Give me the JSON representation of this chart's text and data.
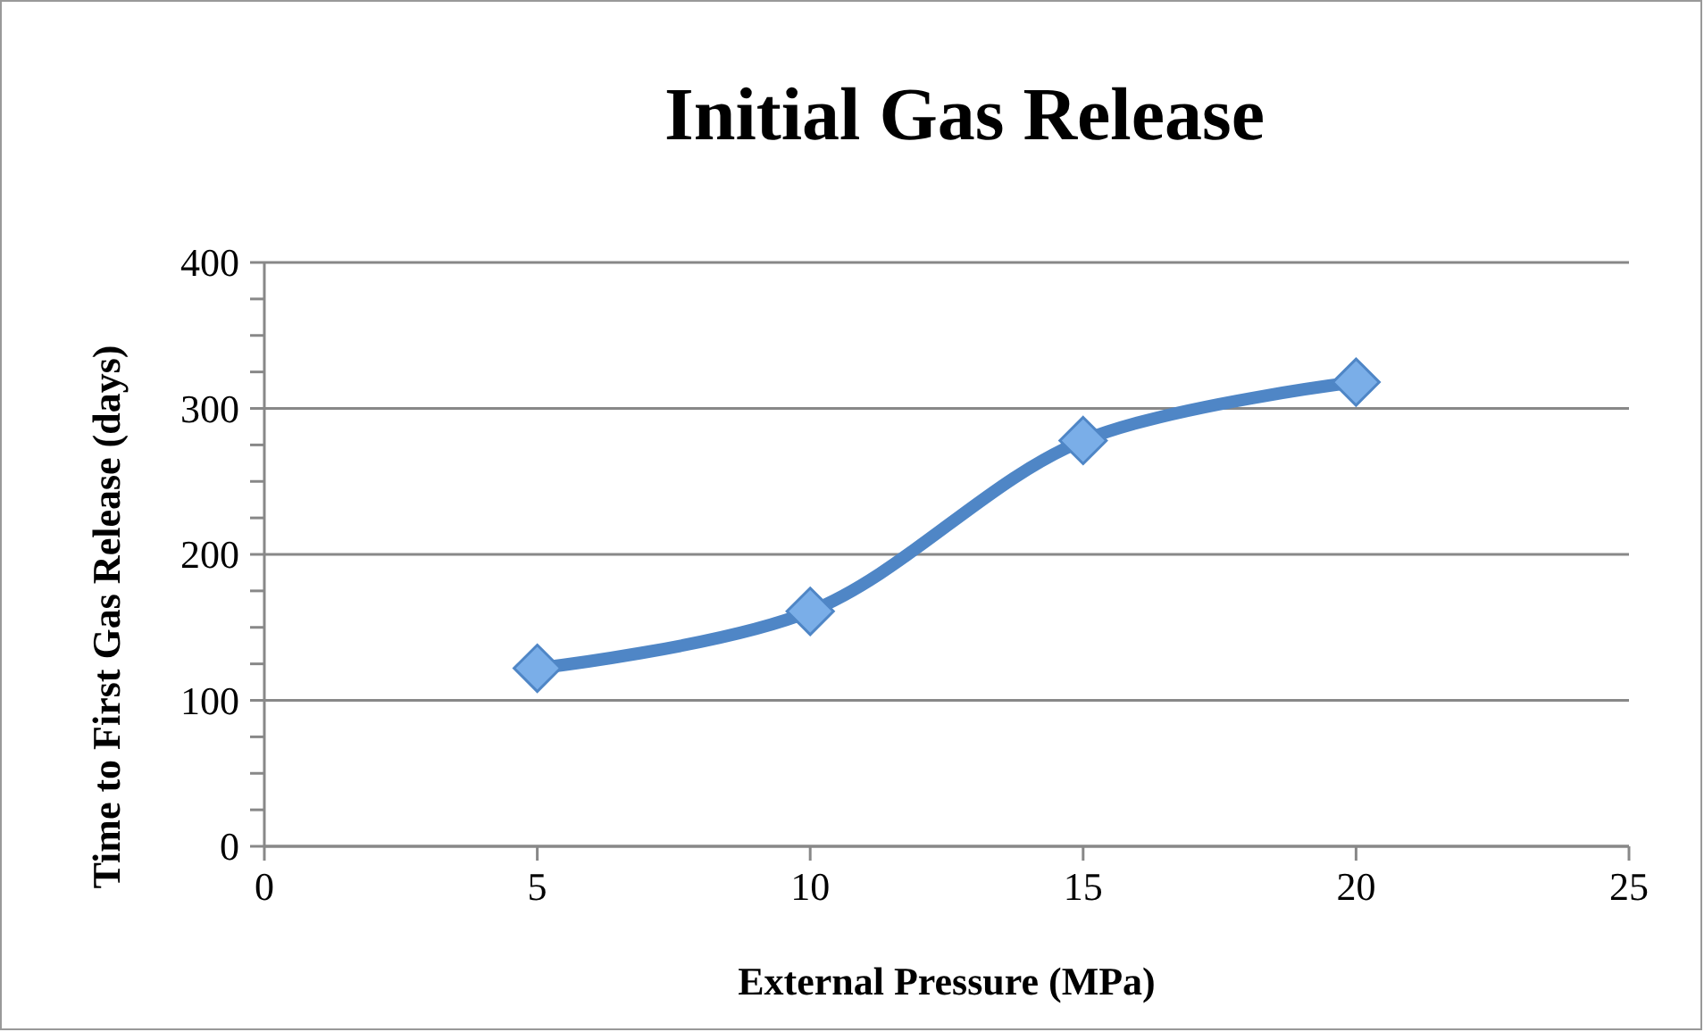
{
  "chart_data": {
    "type": "line",
    "title": "Initial Gas Release",
    "xlabel": "External Pressure (MPa)",
    "ylabel": "Time to First Gas Release (days)",
    "x": [
      5,
      10,
      15,
      20
    ],
    "series": [
      {
        "color": "#4f86c6",
        "values": [
          122,
          161,
          278,
          318
        ]
      }
    ],
    "xlim": [
      0,
      25
    ],
    "xticks": [
      0,
      5,
      10,
      15,
      20,
      25
    ],
    "ylim": [
      0,
      400
    ],
    "yticks": [
      0,
      {
        "value": 25,
        "label": null
      },
      {
        "value": 50,
        "label": null
      },
      {
        "value": 75,
        "label": null
      },
      100,
      {
        "value": 125,
        "label": null
      },
      {
        "value": 150,
        "label": null
      },
      {
        "value": 175,
        "label": null
      },
      200,
      {
        "value": 225,
        "label": null
      },
      {
        "value": 250,
        "label": null
      },
      {
        "value": 275,
        "label": null
      },
      300,
      {
        "value": 325,
        "label": null
      },
      {
        "value": 350,
        "label": null
      },
      {
        "value": 375,
        "label": null
      },
      400
    ],
    "grid": "y",
    "marker": "diamond",
    "line_style": "solid"
  }
}
